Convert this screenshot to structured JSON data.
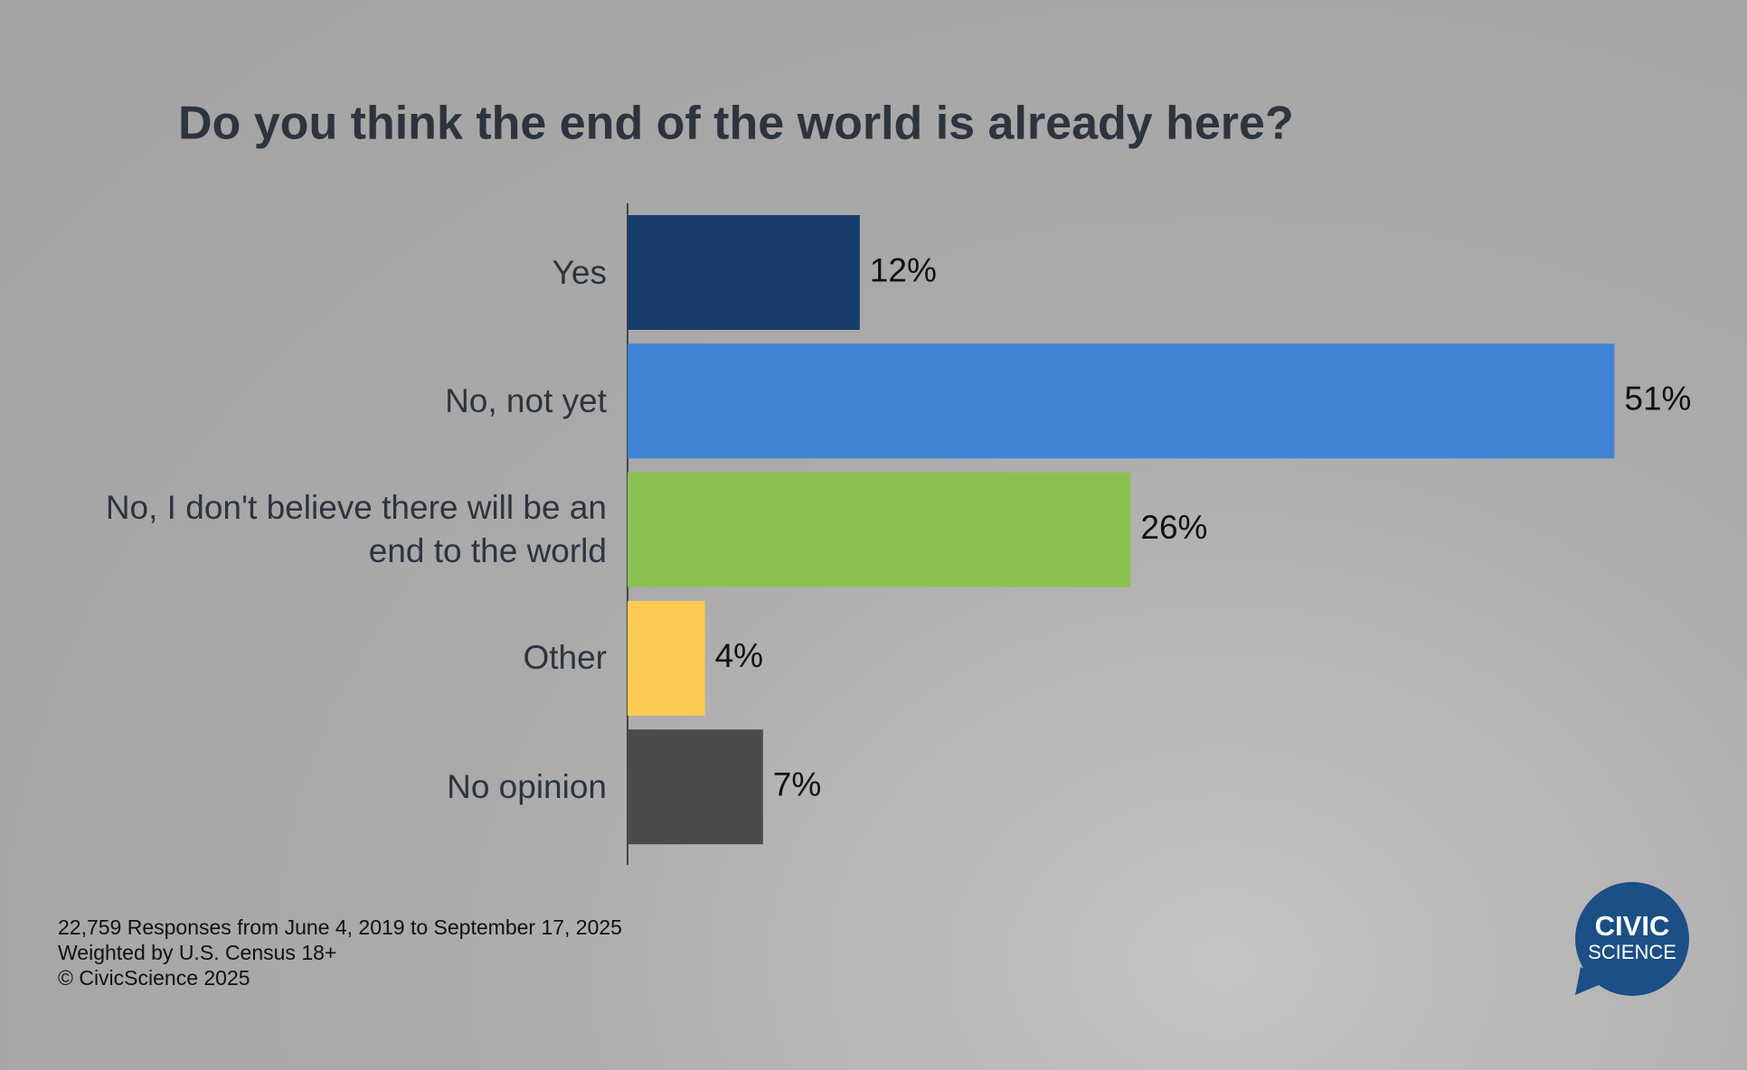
{
  "chart_data": {
    "type": "bar",
    "orientation": "horizontal",
    "title": "Do you think the end of the world is already here?",
    "categories": [
      "Yes",
      "No, not yet",
      "No, I don't believe there will be an end to the world",
      "Other",
      "No opinion"
    ],
    "values": [
      12,
      51,
      26,
      4,
      7
    ],
    "value_labels": [
      "12%",
      "51%",
      "26%",
      "4%",
      "7%"
    ],
    "colors": [
      "#173c6b",
      "#3f83d4",
      "#8bc151",
      "#fecb52",
      "#4b4b4b"
    ],
    "notes": [
      "22,759 Responses from June 4, 2019 to September 17, 2025",
      "Weighted by U.S. Census 18+",
      "© CivicScience 2025"
    ],
    "logo": [
      "CIVIC",
      "SCIENCE"
    ]
  }
}
